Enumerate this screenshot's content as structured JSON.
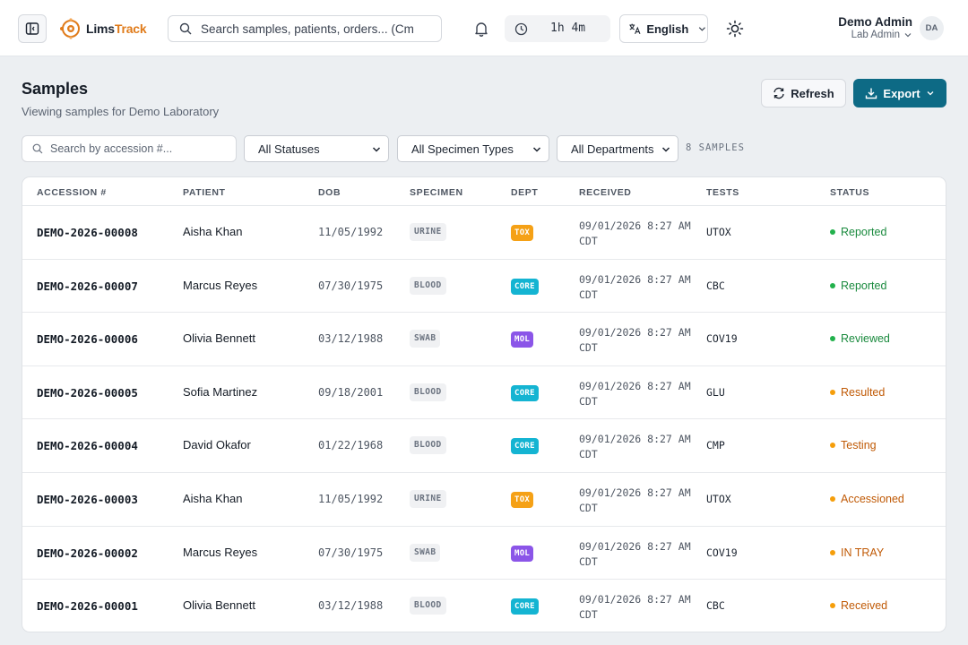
{
  "header": {
    "logo_text_dark": "Lims",
    "logo_text_accent": "Track",
    "search_placeholder": "Search samples, patients, orders... (Cm",
    "timer": "1h 4m",
    "language": "English",
    "user_name": "Demo Admin",
    "user_role": "Lab Admin",
    "avatar_initials": "DA"
  },
  "page": {
    "title": "Samples",
    "subtitle": "Viewing samples for Demo Laboratory",
    "refresh_label": "Refresh",
    "export_label": "Export"
  },
  "filters": {
    "search_placeholder": "Search by accession #...",
    "status": "All Statuses",
    "specimen_type": "All Specimen Types",
    "department": "All Departments",
    "count": "8 SAMPLES"
  },
  "table": {
    "headers": [
      "ACCESSION #",
      "PATIENT",
      "DOB",
      "SPECIMEN",
      "DEPT",
      "RECEIVED",
      "TESTS",
      "STATUS"
    ],
    "rows": [
      {
        "accession": "DEMO-2026-00008",
        "patient": "Aisha Khan",
        "dob": "11/05/1992",
        "specimen": "URINE",
        "dept": "TOX",
        "received_date": "09/01/2026 8:27 AM",
        "received_tz": "CDT",
        "tests": "UTOX",
        "status": "Reported"
      },
      {
        "accession": "DEMO-2026-00007",
        "patient": "Marcus Reyes",
        "dob": "07/30/1975",
        "specimen": "BLOOD",
        "dept": "CORE",
        "received_date": "09/01/2026 8:27 AM",
        "received_tz": "CDT",
        "tests": "CBC",
        "status": "Reported"
      },
      {
        "accession": "DEMO-2026-00006",
        "patient": "Olivia Bennett",
        "dob": "03/12/1988",
        "specimen": "SWAB",
        "dept": "MOL",
        "received_date": "09/01/2026 8:27 AM",
        "received_tz": "CDT",
        "tests": "COV19",
        "status": "Reviewed"
      },
      {
        "accession": "DEMO-2026-00005",
        "patient": "Sofia Martinez",
        "dob": "09/18/2001",
        "specimen": "BLOOD",
        "dept": "CORE",
        "received_date": "09/01/2026 8:27 AM",
        "received_tz": "CDT",
        "tests": "GLU",
        "status": "Resulted"
      },
      {
        "accession": "DEMO-2026-00004",
        "patient": "David Okafor",
        "dob": "01/22/1968",
        "specimen": "BLOOD",
        "dept": "CORE",
        "received_date": "09/01/2026 8:27 AM",
        "received_tz": "CDT",
        "tests": "CMP",
        "status": "Testing"
      },
      {
        "accession": "DEMO-2026-00003",
        "patient": "Aisha Khan",
        "dob": "11/05/1992",
        "specimen": "URINE",
        "dept": "TOX",
        "received_date": "09/01/2026 8:27 AM",
        "received_tz": "CDT",
        "tests": "UTOX",
        "status": "Accessioned"
      },
      {
        "accession": "DEMO-2026-00002",
        "patient": "Marcus Reyes",
        "dob": "07/30/1975",
        "specimen": "SWAB",
        "dept": "MOL",
        "received_date": "09/01/2026 8:27 AM",
        "received_tz": "CDT",
        "tests": "COV19",
        "status": "IN TRAY"
      },
      {
        "accession": "DEMO-2026-00001",
        "patient": "Olivia Bennett",
        "dob": "03/12/1988",
        "specimen": "BLOOD",
        "dept": "CORE",
        "received_date": "09/01/2026 8:27 AM",
        "received_tz": "CDT",
        "tests": "CBC",
        "status": "Received"
      }
    ]
  },
  "colors": {
    "brand_primary": "#0d6a85",
    "logo_accent": "#e07b1a",
    "dept": {
      "TOX": "#f5a116",
      "CORE": "#14b4d2",
      "MOL": "#8b55e8"
    },
    "status": {
      "Reported": "#1a8a3e",
      "Reviewed": "#1a8a3e",
      "Resulted": "#c05a06",
      "Testing": "#c05a06",
      "Accessioned": "#c05a06",
      "IN TRAY": "#c05a06",
      "Received": "#c05a06"
    },
    "status_dot": {
      "Reported": "#22b14c",
      "Reviewed": "#22b14c",
      "Resulted": "#f59e0b",
      "Testing": "#f59e0b",
      "Accessioned": "#f59e0b",
      "IN TRAY": "#f59e0b",
      "Received": "#f59e0b"
    }
  },
  "icons": {
    "sidebar_toggle": "sidebar-toggle-icon",
    "search": "search-icon",
    "notifications": "bell-icon",
    "session_timer": "clock-icon",
    "language": "translate-icon",
    "theme": "sun-icon",
    "refresh": "refresh-icon",
    "export": "download-icon"
  }
}
